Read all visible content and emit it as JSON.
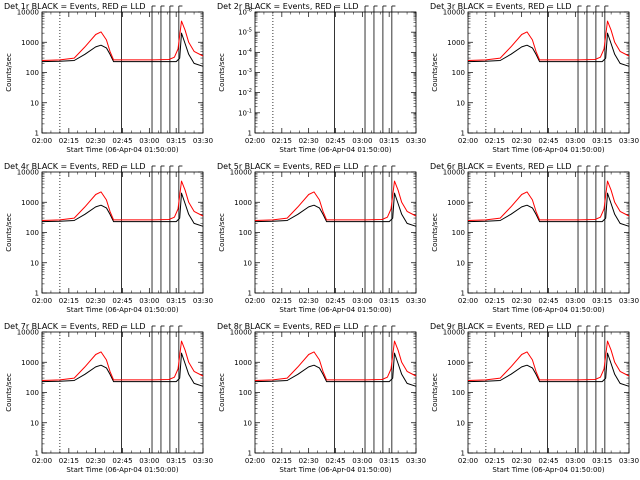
{
  "chart_data": [
    {
      "type": "line",
      "title": "Det 1r  BLACK = Events, RED = LLD",
      "xlabel": "Start Time (06-Apr-04 01:50:00)",
      "ylabel": "Counts/sec",
      "yscale": "log",
      "ylim": [
        1,
        10000
      ],
      "yticks": [
        "1",
        "10",
        "100",
        "1000",
        "10000"
      ],
      "xticks": [
        "02:00",
        "02:15",
        "02:30",
        "02:45",
        "03:00",
        "03:15",
        "03:30"
      ],
      "xlim_minutes": [
        10,
        100
      ],
      "grid": false,
      "series": [
        {
          "name": "BLACK = Events",
          "color": "#000000",
          "x": [
            10,
            20,
            28,
            34,
            40,
            43,
            46,
            48,
            50,
            55,
            62,
            72,
            81,
            85,
            87,
            88,
            90,
            92,
            95,
            100
          ],
          "y": [
            230,
            235,
            250,
            400,
            700,
            800,
            650,
            400,
            230,
            230,
            230,
            230,
            230,
            230,
            300,
            2000,
            900,
            400,
            200,
            160
          ]
        },
        {
          "name": "RED = LLD",
          "color": "#ff0000",
          "x": [
            10,
            20,
            28,
            34,
            40,
            43,
            46,
            48,
            50,
            55,
            62,
            72,
            81,
            84,
            86,
            88,
            90,
            92,
            95,
            100
          ],
          "y": [
            250,
            260,
            300,
            700,
            1800,
            2200,
            1200,
            500,
            260,
            260,
            260,
            260,
            270,
            320,
            600,
            5000,
            2500,
            1000,
            500,
            350
          ]
        }
      ]
    },
    {
      "type": "line",
      "title": "Det 2r  BLACK = Events, RED = LLD",
      "xlabel": "Start Time (06-Apr-04 01:50:00)",
      "ylabel": "Counts/sec",
      "yscale": "log",
      "ylim": [
        1,
        1e-06
      ],
      "yticks": [
        "1",
        "10^-1",
        "10^-2",
        "10^-3",
        "10^-4",
        "10^-5",
        "10^-6"
      ],
      "xticks": [
        "02:00",
        "02:15",
        "02:30",
        "02:45",
        "03:00",
        "03:15",
        "03:30"
      ],
      "xlim_minutes": [
        10,
        100
      ],
      "grid": false,
      "series": []
    },
    {
      "type": "line",
      "title": "Det 3r  BLACK = Events, RED = LLD",
      "xlabel": "Start Time (06-Apr-04 01:50:00)",
      "ylabel": "Counts/sec",
      "yscale": "log",
      "ylim": [
        1,
        10000
      ],
      "yticks": [
        "1",
        "10",
        "100",
        "1000",
        "10000"
      ],
      "xticks": [
        "02:00",
        "02:15",
        "02:30",
        "02:45",
        "03:00",
        "03:15",
        "03:30"
      ],
      "xlim_minutes": [
        10,
        100
      ],
      "grid": false,
      "series": [
        {
          "name": "BLACK = Events",
          "color": "#000000",
          "x": [
            10,
            20,
            28,
            34,
            40,
            43,
            46,
            48,
            50,
            55,
            62,
            72,
            81,
            85,
            87,
            88,
            90,
            92,
            95,
            100
          ],
          "y": [
            230,
            235,
            250,
            400,
            700,
            800,
            650,
            400,
            230,
            230,
            230,
            230,
            230,
            230,
            300,
            2000,
            900,
            400,
            200,
            160
          ]
        },
        {
          "name": "RED = LLD",
          "color": "#ff0000",
          "x": [
            10,
            20,
            28,
            34,
            40,
            43,
            46,
            48,
            50,
            55,
            62,
            72,
            81,
            84,
            86,
            88,
            90,
            92,
            95,
            100
          ],
          "y": [
            250,
            260,
            300,
            700,
            1800,
            2200,
            1200,
            500,
            260,
            260,
            260,
            260,
            270,
            320,
            600,
            5000,
            2500,
            1000,
            500,
            350
          ]
        }
      ]
    },
    {
      "type": "line",
      "title": "Det 4r  BLACK = Events, RED = LLD",
      "xlabel": "Start Time (06-Apr-04 01:50:00)",
      "ylabel": "Counts/sec",
      "yscale": "log",
      "ylim": [
        1,
        10000
      ],
      "yticks": [
        "1",
        "10",
        "100",
        "1000",
        "10000"
      ],
      "xticks": [
        "02:00",
        "02:15",
        "02:30",
        "02:45",
        "03:00",
        "03:15",
        "03:30"
      ],
      "xlim_minutes": [
        10,
        100
      ],
      "grid": false,
      "series": [
        {
          "name": "BLACK = Events",
          "color": "#000000",
          "x": [
            10,
            20,
            28,
            34,
            40,
            43,
            46,
            48,
            50,
            55,
            62,
            72,
            81,
            85,
            87,
            88,
            90,
            92,
            95,
            100
          ],
          "y": [
            230,
            235,
            250,
            400,
            700,
            800,
            650,
            400,
            230,
            230,
            230,
            230,
            230,
            230,
            300,
            2000,
            900,
            400,
            200,
            160
          ]
        },
        {
          "name": "RED = LLD",
          "color": "#ff0000",
          "x": [
            10,
            20,
            28,
            34,
            40,
            43,
            46,
            48,
            50,
            55,
            62,
            72,
            81,
            84,
            86,
            88,
            90,
            92,
            95,
            100
          ],
          "y": [
            250,
            260,
            300,
            700,
            1800,
            2200,
            1200,
            500,
            260,
            260,
            260,
            260,
            270,
            320,
            600,
            5000,
            2500,
            1000,
            500,
            350
          ]
        }
      ]
    },
    {
      "type": "line",
      "title": "Det 5r  BLACK = Events, RED = LLD",
      "xlabel": "Start Time (06-Apr-04 01:50:00)",
      "ylabel": "Counts/sec",
      "yscale": "log",
      "ylim": [
        1,
        10000
      ],
      "yticks": [
        "1",
        "10",
        "100",
        "1000",
        "10000"
      ],
      "xticks": [
        "02:00",
        "02:15",
        "02:30",
        "02:45",
        "03:00",
        "03:15",
        "03:30"
      ],
      "xlim_minutes": [
        10,
        100
      ],
      "grid": false,
      "series": [
        {
          "name": "BLACK = Events",
          "color": "#000000",
          "x": [
            10,
            20,
            28,
            34,
            40,
            43,
            46,
            48,
            50,
            55,
            62,
            72,
            81,
            85,
            87,
            88,
            90,
            92,
            95,
            100
          ],
          "y": [
            230,
            235,
            250,
            400,
            700,
            800,
            650,
            400,
            230,
            230,
            230,
            230,
            230,
            230,
            300,
            2000,
            900,
            400,
            200,
            160
          ]
        },
        {
          "name": "RED = LLD",
          "color": "#ff0000",
          "x": [
            10,
            20,
            28,
            34,
            40,
            43,
            46,
            48,
            50,
            55,
            62,
            72,
            81,
            84,
            86,
            88,
            90,
            92,
            95,
            100
          ],
          "y": [
            250,
            260,
            300,
            700,
            1800,
            2200,
            1200,
            500,
            260,
            260,
            260,
            260,
            270,
            320,
            600,
            5000,
            2500,
            1000,
            500,
            350
          ]
        }
      ]
    },
    {
      "type": "line",
      "title": "Det 6r  BLACK = Events, RED = LLD",
      "xlabel": "Start Time (06-Apr-04 01:50:00)",
      "ylabel": "Counts/sec",
      "yscale": "log",
      "ylim": [
        1,
        10000
      ],
      "yticks": [
        "1",
        "10",
        "100",
        "1000",
        "10000"
      ],
      "xticks": [
        "02:00",
        "02:15",
        "02:30",
        "02:45",
        "03:00",
        "03:15",
        "03:30"
      ],
      "xlim_minutes": [
        10,
        100
      ],
      "grid": false,
      "series": [
        {
          "name": "BLACK = Events",
          "color": "#000000",
          "x": [
            10,
            20,
            28,
            34,
            40,
            43,
            46,
            48,
            50,
            55,
            62,
            72,
            81,
            85,
            87,
            88,
            90,
            92,
            95,
            100
          ],
          "y": [
            230,
            235,
            250,
            400,
            700,
            800,
            650,
            400,
            230,
            230,
            230,
            230,
            230,
            230,
            300,
            2000,
            900,
            400,
            200,
            160
          ]
        },
        {
          "name": "RED = LLD",
          "color": "#ff0000",
          "x": [
            10,
            20,
            28,
            34,
            40,
            43,
            46,
            48,
            50,
            55,
            62,
            72,
            81,
            84,
            86,
            88,
            90,
            92,
            95,
            100
          ],
          "y": [
            250,
            260,
            300,
            700,
            1800,
            2200,
            1200,
            500,
            260,
            260,
            260,
            260,
            270,
            320,
            600,
            5000,
            2500,
            1000,
            500,
            350
          ]
        }
      ]
    },
    {
      "type": "line",
      "title": "Det 7r  BLACK = Events, RED = LLD",
      "xlabel": "Start Time (06-Apr-04 01:50:00)",
      "ylabel": "Counts/sec",
      "yscale": "log",
      "ylim": [
        1,
        10000
      ],
      "yticks": [
        "1",
        "10",
        "100",
        "1000",
        "10000"
      ],
      "xticks": [
        "02:00",
        "02:15",
        "02:30",
        "02:45",
        "03:00",
        "03:15",
        "03:30"
      ],
      "xlim_minutes": [
        10,
        100
      ],
      "grid": false,
      "series": [
        {
          "name": "BLACK = Events",
          "color": "#000000",
          "x": [
            10,
            20,
            28,
            34,
            40,
            43,
            46,
            48,
            50,
            55,
            62,
            72,
            81,
            85,
            87,
            88,
            90,
            92,
            95,
            100
          ],
          "y": [
            230,
            235,
            250,
            400,
            700,
            800,
            650,
            400,
            230,
            230,
            230,
            230,
            230,
            230,
            300,
            2000,
            900,
            400,
            200,
            160
          ]
        },
        {
          "name": "RED = LLD",
          "color": "#ff0000",
          "x": [
            10,
            20,
            28,
            34,
            40,
            43,
            46,
            48,
            50,
            55,
            62,
            72,
            81,
            84,
            86,
            88,
            90,
            92,
            95,
            100
          ],
          "y": [
            250,
            260,
            300,
            700,
            1800,
            2200,
            1200,
            500,
            260,
            260,
            260,
            260,
            270,
            320,
            600,
            5000,
            2500,
            1000,
            500,
            350
          ]
        }
      ]
    },
    {
      "type": "line",
      "title": "Det 8r  BLACK = Events, RED = LLD",
      "xlabel": "Start Time (06-Apr-04 01:50:00)",
      "ylabel": "Counts/sec",
      "yscale": "log",
      "ylim": [
        1,
        10000
      ],
      "yticks": [
        "1",
        "10",
        "100",
        "1000",
        "10000"
      ],
      "xticks": [
        "02:00",
        "02:15",
        "02:30",
        "02:45",
        "03:00",
        "03:15",
        "03:30"
      ],
      "xlim_minutes": [
        10,
        100
      ],
      "grid": false,
      "series": [
        {
          "name": "BLACK = Events",
          "color": "#000000",
          "x": [
            10,
            20,
            28,
            34,
            40,
            43,
            46,
            48,
            50,
            55,
            62,
            72,
            81,
            85,
            87,
            88,
            90,
            92,
            95,
            100
          ],
          "y": [
            230,
            235,
            250,
            400,
            700,
            800,
            650,
            400,
            230,
            230,
            230,
            230,
            230,
            230,
            300,
            2000,
            900,
            400,
            200,
            160
          ]
        },
        {
          "name": "RED = LLD",
          "color": "#ff0000",
          "x": [
            10,
            20,
            28,
            34,
            40,
            43,
            46,
            48,
            50,
            55,
            62,
            72,
            81,
            84,
            86,
            88,
            90,
            92,
            95,
            100
          ],
          "y": [
            250,
            260,
            300,
            700,
            1800,
            2200,
            1200,
            500,
            260,
            260,
            260,
            260,
            270,
            320,
            600,
            5000,
            2500,
            1000,
            500,
            350
          ]
        }
      ]
    },
    {
      "type": "line",
      "title": "Det 9r  BLACK = Events, RED = LLD",
      "xlabel": "Start Time (06-Apr-04 01:50:00)",
      "ylabel": "Counts/sec",
      "yscale": "log",
      "ylim": [
        1,
        10000
      ],
      "yticks": [
        "1",
        "10",
        "100",
        "1000",
        "10000"
      ],
      "xticks": [
        "02:00",
        "02:15",
        "02:30",
        "02:45",
        "03:00",
        "03:15",
        "03:30"
      ],
      "xlim_minutes": [
        10,
        100
      ],
      "grid": false,
      "series": [
        {
          "name": "BLACK = Events",
          "color": "#000000",
          "x": [
            10,
            20,
            28,
            34,
            40,
            43,
            46,
            48,
            50,
            55,
            62,
            72,
            81,
            85,
            87,
            88,
            90,
            92,
            95,
            100
          ],
          "y": [
            230,
            235,
            250,
            400,
            700,
            800,
            650,
            400,
            230,
            230,
            230,
            230,
            230,
            230,
            300,
            2000,
            900,
            400,
            200,
            160
          ]
        },
        {
          "name": "RED = LLD",
          "color": "#ff0000",
          "x": [
            10,
            20,
            28,
            34,
            40,
            43,
            46,
            48,
            50,
            55,
            62,
            72,
            81,
            84,
            86,
            88,
            90,
            92,
            95,
            100
          ],
          "y": [
            250,
            260,
            300,
            700,
            1800,
            2200,
            1200,
            500,
            260,
            260,
            260,
            260,
            270,
            320,
            600,
            5000,
            2500,
            1000,
            500,
            350
          ]
        }
      ]
    }
  ]
}
